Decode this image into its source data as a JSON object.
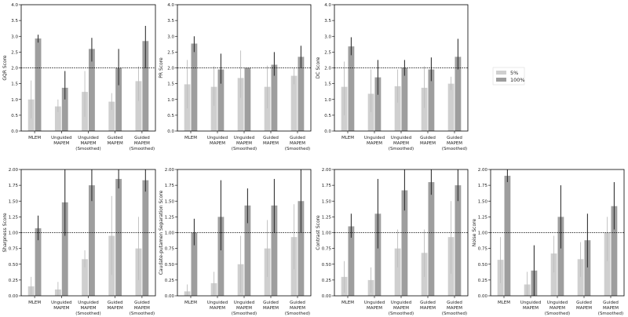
{
  "colors": {
    "c5": "#cfcfcf",
    "c100": "#9e9e9e",
    "err": "#333333",
    "err5": "#bdbdbd",
    "axis": "#000000",
    "ref": "#000000"
  },
  "legend": [
    {
      "label": "5%",
      "series": "s5"
    },
    {
      "label": "100%",
      "series": "s100"
    }
  ],
  "chart_data": [
    {
      "type": "bar",
      "ylabel": "GQR Score",
      "ylim": [
        0,
        4
      ],
      "yticks": [
        "0.0",
        "0.5",
        "1.0",
        "1.5",
        "2.0",
        "2.5",
        "3.0",
        "3.5",
        "4.0"
      ],
      "categories": [
        [
          "MLEM"
        ],
        [
          "Unguided",
          "MAPEM"
        ],
        [
          "Unguided",
          "MAPEM",
          "(Smoothed)"
        ],
        [
          "Guided",
          "MAPEM"
        ],
        [
          "Guided",
          "MAPEM",
          "(Smoothed)"
        ]
      ],
      "ref_line": 2.0,
      "series": [
        {
          "name": "5%",
          "values": [
            1.0,
            0.78,
            1.24,
            0.93,
            1.58
          ],
          "err_low": [
            0.4,
            0.6,
            0.45,
            0.67,
            0.95
          ],
          "err_high": [
            1.6,
            1.0,
            1.9,
            1.2,
            2.05
          ]
        },
        {
          "name": "100%",
          "values": [
            2.93,
            1.37,
            2.6,
            2.0,
            2.85
          ],
          "err_low": [
            2.8,
            1.0,
            2.2,
            1.45,
            2.0
          ],
          "err_high": [
            3.05,
            1.9,
            2.95,
            2.6,
            3.33
          ]
        }
      ]
    },
    {
      "type": "bar",
      "ylabel": "PR Score",
      "ylim": [
        0,
        4
      ],
      "yticks": [
        "0.0",
        "0.5",
        "1.0",
        "1.5",
        "2.0",
        "2.5",
        "3.0",
        "3.5",
        "4.0"
      ],
      "categories": [
        [
          "MLEM"
        ],
        [
          "Unguided",
          "MAPEM"
        ],
        [
          "Unguided",
          "MAPEM",
          "(Smoothed)"
        ],
        [
          "Guided",
          "MAPEM"
        ],
        [
          "Guided",
          "MAPEM",
          "(Smoothed)"
        ]
      ],
      "ref_line": 2.0,
      "series": [
        {
          "name": "5%",
          "values": [
            1.48,
            1.4,
            1.68,
            1.4,
            1.75
          ],
          "err_low": [
            0.72,
            0.8,
            1.05,
            0.72,
            1.48
          ],
          "err_high": [
            2.25,
            2.05,
            2.55,
            2.07,
            2.0
          ]
        },
        {
          "name": "100%",
          "values": [
            2.77,
            1.95,
            2.0,
            2.1,
            2.35
          ],
          "err_low": [
            2.5,
            1.5,
            2.0,
            1.75,
            2.0
          ],
          "err_high": [
            3.0,
            2.45,
            2.0,
            2.5,
            2.7
          ]
        }
      ]
    },
    {
      "type": "bar",
      "ylabel": "DC Score",
      "ylim": [
        0,
        4
      ],
      "yticks": [
        "0.0",
        "0.5",
        "1.0",
        "1.5",
        "2.0",
        "2.5",
        "3.0",
        "3.5",
        "4.0"
      ],
      "categories": [
        [
          "MLEM"
        ],
        [
          "Unguided",
          "MAPEM"
        ],
        [
          "Unguided",
          "MAPEM",
          "(Smoothed)"
        ],
        [
          "Guided",
          "MAPEM"
        ],
        [
          "Guided",
          "MAPEM",
          "(Smoothed)"
        ]
      ],
      "ref_line": 2.0,
      "series": [
        {
          "name": "5%",
          "values": [
            1.4,
            1.18,
            1.42,
            1.37,
            1.5
          ],
          "err_low": [
            0.5,
            0.6,
            0.9,
            0.73,
            1.3
          ],
          "err_high": [
            2.2,
            1.95,
            1.95,
            2.05,
            1.72
          ]
        },
        {
          "name": "100%",
          "values": [
            2.68,
            1.7,
            2.0,
            1.95,
            2.35
          ],
          "err_low": [
            2.4,
            1.15,
            1.75,
            1.58,
            1.95
          ],
          "err_high": [
            2.97,
            2.25,
            2.25,
            2.33,
            2.92
          ]
        }
      ]
    },
    {
      "type": "bar",
      "ylabel": "Sharpness Score",
      "ylim": [
        0,
        2
      ],
      "yticks": [
        "0.00",
        "0.25",
        "0.50",
        "0.75",
        "1.00",
        "1.25",
        "1.50",
        "1.75",
        "2.00"
      ],
      "categories": [
        [
          "MLEM"
        ],
        [
          "Unguided",
          "MAPEM"
        ],
        [
          "Unguided",
          "MAPEM",
          "(Smoothed)"
        ],
        [
          "Guided",
          "MAPEM"
        ],
        [
          "Guided",
          "MAPEM",
          "(Smoothed)"
        ]
      ],
      "ref_line": 1.0,
      "series": [
        {
          "name": "5%",
          "values": [
            0.15,
            0.1,
            0.58,
            0.95,
            0.75
          ],
          "err_low": [
            0.02,
            0.0,
            0.45,
            0.33,
            0.25
          ],
          "err_high": [
            0.3,
            0.22,
            0.72,
            1.58,
            1.25
          ]
        },
        {
          "name": "100%",
          "values": [
            1.07,
            1.48,
            1.75,
            1.85,
            1.83
          ],
          "err_low": [
            0.88,
            0.95,
            1.5,
            1.7,
            1.65
          ],
          "err_high": [
            1.27,
            2.0,
            2.0,
            2.0,
            2.0
          ]
        }
      ]
    },
    {
      "type": "bar",
      "ylabel": "Caudate-putamen Separation Score",
      "ylim": [
        0,
        2
      ],
      "yticks": [
        "0.00",
        "0.25",
        "0.50",
        "0.75",
        "1.00",
        "1.25",
        "1.50",
        "1.75",
        "2.00"
      ],
      "categories": [
        [
          "MLEM"
        ],
        [
          "Unguided",
          "MAPEM"
        ],
        [
          "Unguided",
          "MAPEM",
          "(Smoothed)"
        ],
        [
          "Guided",
          "MAPEM"
        ],
        [
          "Guided",
          "MAPEM",
          "(Smoothed)"
        ]
      ],
      "ref_line": 1.0,
      "series": [
        {
          "name": "5%",
          "values": [
            0.07,
            0.2,
            0.5,
            0.75,
            0.93
          ],
          "err_low": [
            0.0,
            0.02,
            0.05,
            0.3,
            0.42
          ],
          "err_high": [
            0.18,
            0.38,
            0.95,
            1.2,
            1.45
          ]
        },
        {
          "name": "100%",
          "values": [
            1.0,
            1.25,
            1.43,
            1.43,
            1.5
          ],
          "err_low": [
            0.8,
            0.72,
            1.15,
            1.0,
            1.0
          ],
          "err_high": [
            1.22,
            1.83,
            1.7,
            1.85,
            2.0
          ]
        }
      ]
    },
    {
      "type": "bar",
      "ylabel": "Contrast Score",
      "ylim": [
        0,
        2
      ],
      "yticks": [
        "0.00",
        "0.25",
        "0.50",
        "0.75",
        "1.00",
        "1.25",
        "1.50",
        "1.75",
        "2.00"
      ],
      "categories": [
        [
          "MLEM"
        ],
        [
          "Unguided",
          "MAPEM"
        ],
        [
          "Unguided",
          "MAPEM",
          "(Smoothed)"
        ],
        [
          "Guided",
          "MAPEM"
        ],
        [
          "Guided",
          "MAPEM",
          "(Smoothed)"
        ]
      ],
      "ref_line": 1.0,
      "series": [
        {
          "name": "5%",
          "values": [
            0.3,
            0.25,
            0.75,
            0.68,
            0.93
          ],
          "err_low": [
            0.05,
            0.05,
            0.45,
            0.3,
            0.35
          ],
          "err_high": [
            0.55,
            0.45,
            1.05,
            1.05,
            1.5
          ]
        },
        {
          "name": "100%",
          "values": [
            1.1,
            1.3,
            1.67,
            1.8,
            1.75
          ],
          "err_low": [
            0.92,
            0.75,
            1.35,
            1.6,
            1.5
          ],
          "err_high": [
            1.3,
            1.85,
            2.0,
            2.0,
            2.0
          ]
        }
      ]
    },
    {
      "type": "bar",
      "ylabel": "Noise Score",
      "ylim": [
        0,
        2
      ],
      "yticks": [
        "0.00",
        "0.25",
        "0.50",
        "0.75",
        "1.00",
        "1.25",
        "1.50",
        "1.75",
        "2.00"
      ],
      "categories": [
        [
          "MLEM"
        ],
        [
          "Unguided",
          "MAPEM"
        ],
        [
          "Unguided",
          "MAPEM",
          "(Smoothed)"
        ],
        [
          "Guided",
          "MAPEM"
        ],
        [
          "Guided",
          "MAPEM",
          "(Smoothed)"
        ]
      ],
      "ref_line": 1.0,
      "series": [
        {
          "name": "5%",
          "values": [
            0.57,
            0.18,
            0.67,
            0.58,
            1.0
          ],
          "err_low": [
            0.2,
            0.0,
            0.37,
            0.3,
            0.55
          ],
          "err_high": [
            0.93,
            0.38,
            0.95,
            0.85,
            1.25
          ]
        },
        {
          "name": "100%",
          "values": [
            1.9,
            0.4,
            1.25,
            0.88,
            1.42
          ],
          "err_low": [
            1.8,
            0.0,
            0.75,
            0.45,
            1.05
          ],
          "err_high": [
            2.0,
            0.8,
            1.75,
            1.3,
            1.8
          ]
        }
      ]
    }
  ]
}
